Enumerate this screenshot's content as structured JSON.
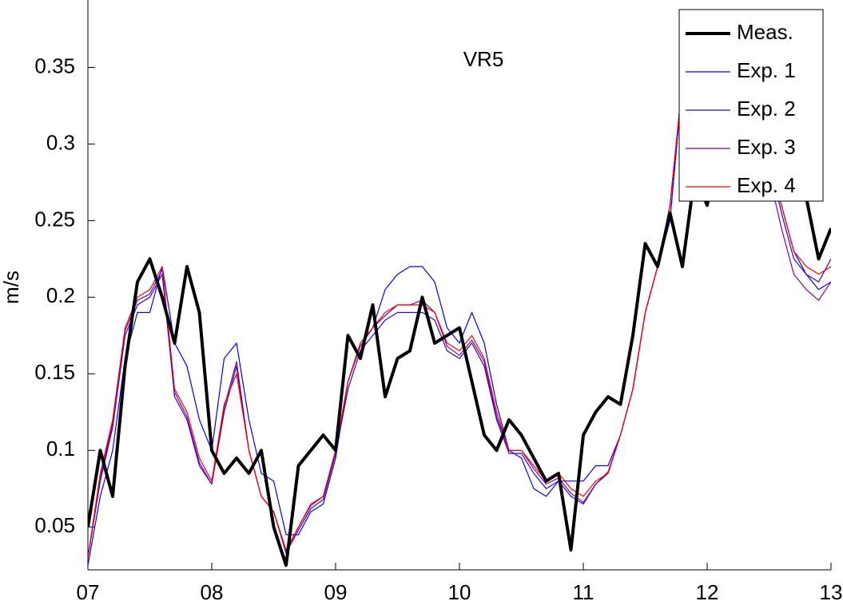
{
  "chart_data": {
    "type": "line",
    "title": "VR5",
    "ylabel": "m/s",
    "x": [
      7.0,
      7.1,
      7.2,
      7.3,
      7.4,
      7.5,
      7.6,
      7.7,
      7.8,
      7.9,
      8.0,
      8.1,
      8.2,
      8.3,
      8.4,
      8.5,
      8.6,
      8.7,
      8.8,
      8.9,
      9.0,
      9.1,
      9.2,
      9.3,
      9.4,
      9.5,
      9.6,
      9.7,
      9.8,
      9.9,
      10.0,
      10.1,
      10.2,
      10.3,
      10.4,
      10.5,
      10.6,
      10.7,
      10.8,
      10.9,
      11.0,
      11.1,
      11.2,
      11.3,
      11.4,
      11.5,
      11.6,
      11.7,
      11.8,
      11.9,
      12.0,
      12.1,
      12.2,
      12.3,
      12.4,
      12.5,
      12.6,
      12.7,
      12.8,
      12.9,
      13.0
    ],
    "series": [
      {
        "name": "Meas.",
        "color": "#000000",
        "values": [
          0.05,
          0.1,
          0.07,
          0.155,
          0.21,
          0.225,
          0.2,
          0.17,
          0.22,
          0.19,
          0.1,
          0.085,
          0.095,
          0.085,
          0.1,
          0.05,
          0.025,
          0.09,
          0.1,
          0.11,
          0.1,
          0.175,
          0.16,
          0.195,
          0.135,
          0.16,
          0.165,
          0.2,
          0.17,
          0.175,
          0.18,
          0.145,
          0.11,
          0.1,
          0.12,
          0.11,
          0.095,
          0.08,
          0.085,
          0.035,
          0.11,
          0.125,
          0.135,
          0.13,
          0.175,
          0.235,
          0.22,
          0.255,
          0.22,
          0.28,
          0.26,
          0.3,
          0.38,
          0.34,
          0.32,
          0.29,
          0.275,
          0.27,
          0.265,
          0.225,
          0.245
        ]
      },
      {
        "name": "Exp. 1",
        "color": "#0000ff",
        "values": [
          0.025,
          0.07,
          0.1,
          0.16,
          0.19,
          0.19,
          0.22,
          0.17,
          0.155,
          0.12,
          0.1,
          0.16,
          0.17,
          0.12,
          0.085,
          0.08,
          0.045,
          0.045,
          0.06,
          0.065,
          0.095,
          0.145,
          0.17,
          0.18,
          0.205,
          0.215,
          0.22,
          0.22,
          0.21,
          0.18,
          0.17,
          0.19,
          0.17,
          0.13,
          0.1,
          0.095,
          0.075,
          0.07,
          0.08,
          0.08,
          0.08,
          0.09,
          0.09,
          0.11,
          0.14,
          0.19,
          0.22,
          0.25,
          0.34,
          0.36,
          0.36,
          0.35,
          0.33,
          0.32,
          0.31,
          0.29,
          0.26,
          0.23,
          0.215,
          0.205,
          0.21
        ]
      },
      {
        "name": "Exp. 2",
        "color": "#3300cc",
        "values": [
          0.03,
          0.08,
          0.115,
          0.175,
          0.195,
          0.2,
          0.215,
          0.135,
          0.12,
          0.09,
          0.078,
          0.125,
          0.155,
          0.1,
          0.07,
          0.06,
          0.033,
          0.048,
          0.062,
          0.068,
          0.098,
          0.14,
          0.165,
          0.175,
          0.185,
          0.19,
          0.19,
          0.19,
          0.185,
          0.165,
          0.16,
          0.17,
          0.155,
          0.12,
          0.098,
          0.098,
          0.085,
          0.075,
          0.08,
          0.07,
          0.065,
          0.078,
          0.085,
          0.11,
          0.14,
          0.19,
          0.22,
          0.26,
          0.34,
          0.36,
          0.36,
          0.35,
          0.33,
          0.32,
          0.31,
          0.29,
          0.255,
          0.225,
          0.215,
          0.21,
          0.225
        ]
      },
      {
        "name": "Exp. 3",
        "color": "#7700aa",
        "values": [
          0.03,
          0.082,
          0.118,
          0.178,
          0.198,
          0.202,
          0.218,
          0.138,
          0.122,
          0.092,
          0.078,
          0.128,
          0.158,
          0.1,
          0.07,
          0.06,
          0.034,
          0.05,
          0.064,
          0.07,
          0.1,
          0.145,
          0.168,
          0.18,
          0.188,
          0.195,
          0.195,
          0.198,
          0.19,
          0.168,
          0.162,
          0.172,
          0.158,
          0.122,
          0.1,
          0.1,
          0.088,
          0.078,
          0.082,
          0.072,
          0.066,
          0.078,
          0.086,
          0.11,
          0.14,
          0.19,
          0.22,
          0.26,
          0.34,
          0.36,
          0.36,
          0.35,
          0.33,
          0.32,
          0.3,
          0.28,
          0.245,
          0.215,
          0.205,
          0.198,
          0.21
        ]
      },
      {
        "name": "Exp. 4",
        "color": "#ff0000",
        "values": [
          0.03,
          0.085,
          0.12,
          0.18,
          0.2,
          0.205,
          0.22,
          0.14,
          0.125,
          0.095,
          0.08,
          0.13,
          0.15,
          0.1,
          0.07,
          0.06,
          0.035,
          0.05,
          0.065,
          0.07,
          0.1,
          0.145,
          0.17,
          0.18,
          0.19,
          0.195,
          0.195,
          0.195,
          0.19,
          0.17,
          0.165,
          0.175,
          0.16,
          0.125,
          0.1,
          0.1,
          0.09,
          0.08,
          0.085,
          0.075,
          0.07,
          0.08,
          0.085,
          0.11,
          0.14,
          0.19,
          0.22,
          0.26,
          0.34,
          0.36,
          0.36,
          0.35,
          0.33,
          0.32,
          0.31,
          0.29,
          0.26,
          0.23,
          0.22,
          0.215,
          0.22
        ]
      }
    ],
    "xlim": [
      7,
      13
    ],
    "xticks": [
      {
        "value": 7,
        "label": "07"
      },
      {
        "value": 8,
        "label": "08"
      },
      {
        "value": 9,
        "label": "09"
      },
      {
        "value": 10,
        "label": "10"
      },
      {
        "value": 11,
        "label": "11"
      },
      {
        "value": 12,
        "label": "12"
      },
      {
        "value": 13,
        "label": "13"
      }
    ],
    "ylim": [
      0.022,
      0.394
    ],
    "yticks": [
      0.05,
      0.1,
      0.15,
      0.2,
      0.25,
      0.3,
      0.35
    ],
    "legend": "upper right"
  }
}
